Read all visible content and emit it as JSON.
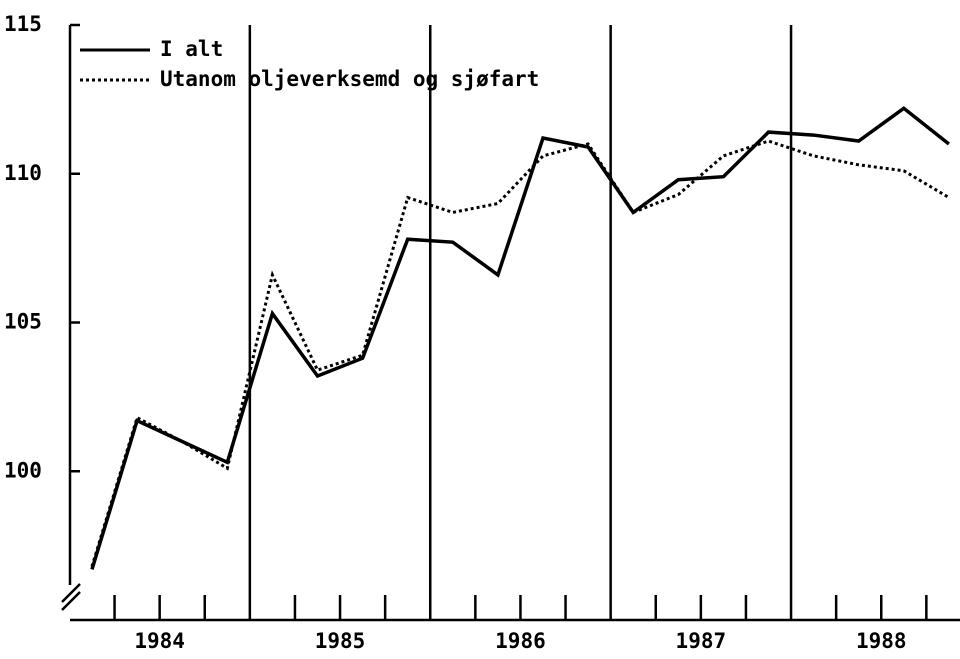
{
  "chart_data": {
    "type": "line",
    "categories": [
      null,
      null,
      null,
      null,
      null,
      null,
      null,
      null,
      null,
      null,
      null,
      null,
      null,
      null,
      null,
      null,
      null,
      null,
      null,
      null
    ],
    "year_labels": [
      "1984",
      "1985",
      "1986",
      "1987",
      "1988"
    ],
    "series": [
      {
        "name": "I alt",
        "color": "#000000",
        "style": "solid",
        "values": [
          96.7,
          101.7,
          101.0,
          100.3,
          105.3,
          103.2,
          103.8,
          107.8,
          107.7,
          106.6,
          111.2,
          110.9,
          108.7,
          109.8,
          109.9,
          111.4,
          111.3,
          111.1,
          112.2,
          111.0
        ]
      },
      {
        "name": "Utanom oljeverksemd og sjøfart",
        "color": "#000000",
        "style": "dotted",
        "values": [
          96.8,
          101.8,
          101.0,
          100.1,
          106.6,
          103.4,
          103.9,
          109.2,
          108.7,
          109.0,
          110.6,
          111.0,
          108.7,
          109.3,
          110.6,
          111.1,
          110.6,
          110.3,
          110.1,
          109.2
        ]
      }
    ],
    "ylim": [
      95,
      115
    ],
    "yticks": [
      100,
      105,
      110,
      115
    ],
    "legend": "top-left"
  }
}
